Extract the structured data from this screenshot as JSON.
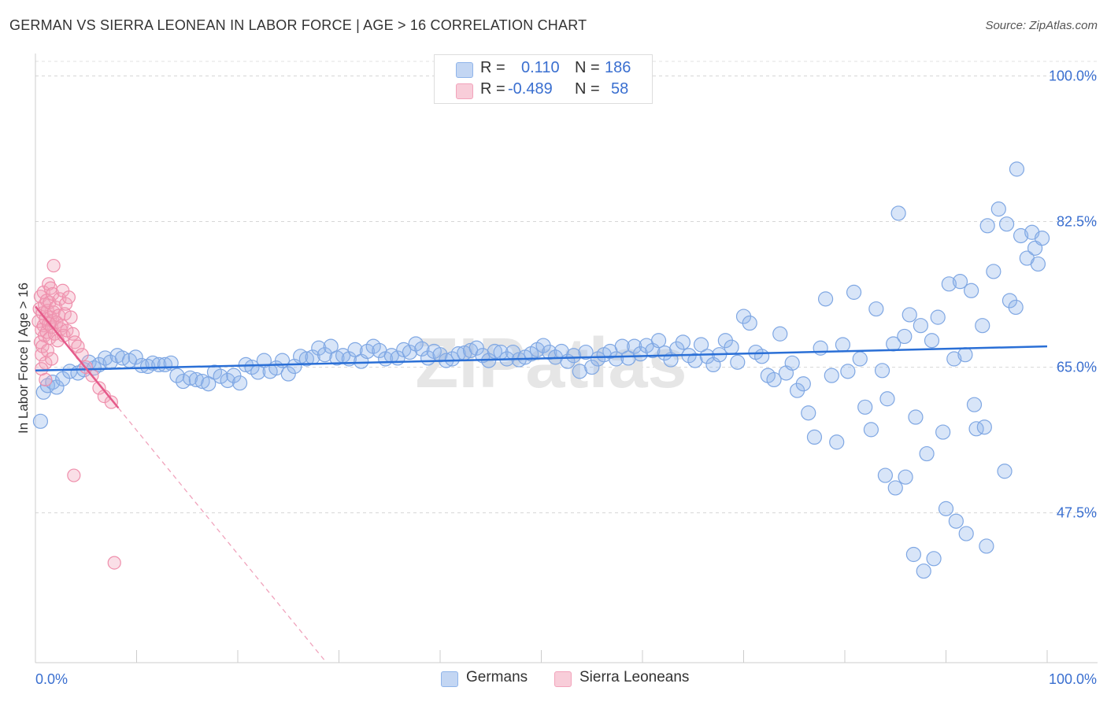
{
  "title": "GERMAN VS SIERRA LEONEAN IN LABOR FORCE | AGE > 16 CORRELATION CHART",
  "source": "Source: ZipAtlas.com",
  "watermark": "ZIPatlas",
  "legend": {
    "rows": [
      {
        "r_label": "R =",
        "r_value": "0.110",
        "n_label": "N =",
        "n_value": "186",
        "color": "#8fb4ea"
      },
      {
        "r_label": "R =",
        "r_value": "-0.489",
        "n_label": "N =",
        "n_value": "58",
        "color": "#f2a3bb"
      }
    ]
  },
  "bottom_legend": [
    {
      "label": "Germans",
      "color": "#8fb4ea"
    },
    {
      "label": "Sierra Leoneans",
      "color": "#f2a3bb"
    }
  ],
  "chart_data": {
    "type": "scatter",
    "title": "GERMAN VS SIERRA LEONEAN IN LABOR FORCE | AGE > 16 CORRELATION CHART",
    "xlabel": "",
    "ylabel": "In Labor Force | Age > 16",
    "xlim": [
      0,
      100
    ],
    "ylim": [
      29.5,
      102.5
    ],
    "x_tick_labels": [
      "0.0%",
      "100.0%"
    ],
    "y_ticks": [
      47.5,
      65.0,
      82.5,
      100.0
    ],
    "y_tick_labels": [
      "47.5%",
      "65.0%",
      "82.5%",
      "100.0%"
    ],
    "grid": true,
    "series": [
      {
        "name": "Germans",
        "color": "#8fb4ea",
        "line_color": "#2a6fd6",
        "trend": {
          "x0": 0,
          "y0": 64.6,
          "x1": 100,
          "y1": 67.5
        },
        "points": [
          [
            0.5,
            58.5
          ],
          [
            0.8,
            62
          ],
          [
            1.2,
            62.8
          ],
          [
            1.7,
            63.2
          ],
          [
            2.1,
            62.6
          ],
          [
            2.7,
            63.6
          ],
          [
            3.4,
            64.5
          ],
          [
            4.2,
            64.3
          ],
          [
            4.8,
            64.7
          ],
          [
            5.3,
            65.6
          ],
          [
            5.8,
            64.9
          ],
          [
            6.3,
            65.3
          ],
          [
            6.9,
            66.1
          ],
          [
            7.4,
            65.6
          ],
          [
            8.1,
            66.4
          ],
          [
            8.6,
            66.1
          ],
          [
            9.3,
            65.8
          ],
          [
            9.9,
            66.2
          ],
          [
            10.5,
            65.2
          ],
          [
            11.1,
            65.1
          ],
          [
            11.6,
            65.5
          ],
          [
            12.2,
            65.3
          ],
          [
            12.8,
            65.3
          ],
          [
            13.4,
            65.5
          ],
          [
            14.0,
            64.0
          ],
          [
            14.6,
            63.3
          ],
          [
            15.3,
            63.7
          ],
          [
            15.9,
            63.5
          ],
          [
            16.5,
            63.3
          ],
          [
            17.1,
            63.0
          ],
          [
            17.7,
            64.4
          ],
          [
            18.3,
            63.9
          ],
          [
            19.0,
            63.4
          ],
          [
            19.6,
            64.0
          ],
          [
            20.2,
            63.1
          ],
          [
            20.8,
            65.3
          ],
          [
            21.4,
            65.0
          ],
          [
            22.0,
            64.4
          ],
          [
            22.6,
            65.8
          ],
          [
            23.2,
            64.5
          ],
          [
            23.8,
            64.9
          ],
          [
            24.4,
            65.8
          ],
          [
            25.0,
            64.2
          ],
          [
            25.6,
            65.1
          ],
          [
            26.2,
            66.3
          ],
          [
            26.8,
            66.0
          ],
          [
            27.4,
            66.2
          ],
          [
            28.0,
            67.3
          ],
          [
            28.6,
            66.5
          ],
          [
            29.2,
            67.5
          ],
          [
            29.8,
            66.1
          ],
          [
            30.4,
            66.4
          ],
          [
            31.0,
            66.0
          ],
          [
            31.6,
            67.1
          ],
          [
            32.2,
            65.7
          ],
          [
            32.8,
            66.9
          ],
          [
            33.4,
            67.5
          ],
          [
            34.0,
            67.0
          ],
          [
            34.6,
            66.0
          ],
          [
            35.2,
            66.4
          ],
          [
            35.8,
            66.1
          ],
          [
            36.4,
            67.1
          ],
          [
            37.0,
            66.8
          ],
          [
            37.6,
            67.8
          ],
          [
            38.2,
            67.2
          ],
          [
            38.8,
            66.1
          ],
          [
            39.4,
            66.9
          ],
          [
            40.0,
            66.5
          ],
          [
            40.6,
            65.8
          ],
          [
            41.2,
            66.0
          ],
          [
            41.8,
            66.6
          ],
          [
            42.4,
            66.7
          ],
          [
            43.0,
            67.0
          ],
          [
            43.6,
            67.3
          ],
          [
            44.2,
            66.4
          ],
          [
            44.8,
            65.8
          ],
          [
            45.4,
            66.9
          ],
          [
            46.0,
            66.8
          ],
          [
            46.6,
            66.0
          ],
          [
            47.2,
            66.8
          ],
          [
            47.8,
            65.9
          ],
          [
            48.4,
            66.2
          ],
          [
            49.0,
            66.6
          ],
          [
            49.6,
            67.1
          ],
          [
            50.2,
            67.6
          ],
          [
            50.8,
            66.8
          ],
          [
            51.4,
            66.2
          ],
          [
            52.0,
            66.9
          ],
          [
            52.6,
            65.7
          ],
          [
            53.2,
            66.4
          ],
          [
            53.8,
            64.5
          ],
          [
            54.4,
            66.8
          ],
          [
            55.0,
            65.0
          ],
          [
            55.6,
            66.0
          ],
          [
            56.2,
            66.5
          ],
          [
            56.8,
            66.9
          ],
          [
            57.4,
            66.0
          ],
          [
            58.0,
            67.5
          ],
          [
            58.6,
            66.1
          ],
          [
            59.2,
            67.5
          ],
          [
            59.8,
            66.6
          ],
          [
            60.4,
            67.6
          ],
          [
            61.0,
            67.0
          ],
          [
            61.6,
            68.2
          ],
          [
            62.2,
            66.7
          ],
          [
            62.8,
            65.9
          ],
          [
            63.4,
            67.2
          ],
          [
            64.0,
            68.0
          ],
          [
            64.6,
            66.4
          ],
          [
            65.2,
            65.8
          ],
          [
            65.8,
            67.7
          ],
          [
            66.4,
            66.3
          ],
          [
            67.0,
            65.3
          ],
          [
            67.6,
            66.5
          ],
          [
            68.2,
            68.2
          ],
          [
            68.8,
            67.4
          ],
          [
            69.4,
            65.6
          ],
          [
            70.0,
            71.1
          ],
          [
            70.6,
            70.3
          ],
          [
            71.2,
            66.8
          ],
          [
            71.8,
            66.3
          ],
          [
            72.4,
            64.0
          ],
          [
            73.0,
            63.5
          ],
          [
            73.6,
            69.0
          ],
          [
            74.2,
            64.3
          ],
          [
            74.8,
            65.5
          ],
          [
            75.3,
            62.2
          ],
          [
            75.9,
            63.0
          ],
          [
            76.4,
            59.5
          ],
          [
            77.0,
            56.6
          ],
          [
            77.6,
            67.3
          ],
          [
            78.1,
            73.2
          ],
          [
            78.7,
            64.0
          ],
          [
            79.2,
            56.0
          ],
          [
            79.8,
            67.7
          ],
          [
            80.3,
            64.5
          ],
          [
            80.9,
            74.0
          ],
          [
            81.5,
            66.0
          ],
          [
            82.0,
            60.2
          ],
          [
            82.6,
            57.5
          ],
          [
            83.1,
            72.0
          ],
          [
            83.7,
            64.6
          ],
          [
            84.2,
            61.2
          ],
          [
            84.8,
            67.8
          ],
          [
            85.3,
            83.5
          ],
          [
            85.9,
            68.7
          ],
          [
            86.4,
            71.3
          ],
          [
            87.0,
            59.0
          ],
          [
            87.5,
            70.0
          ],
          [
            88.1,
            54.6
          ],
          [
            88.6,
            68.2
          ],
          [
            89.2,
            71.0
          ],
          [
            89.7,
            57.2
          ],
          [
            90.3,
            75.0
          ],
          [
            90.8,
            66.0
          ],
          [
            91.4,
            75.3
          ],
          [
            91.9,
            66.5
          ],
          [
            92.5,
            74.2
          ],
          [
            93.0,
            57.6
          ],
          [
            93.6,
            70.0
          ],
          [
            94.1,
            82.0
          ],
          [
            94.7,
            76.5
          ],
          [
            95.2,
            84.0
          ],
          [
            95.8,
            52.5
          ],
          [
            96.3,
            73.0
          ],
          [
            96.9,
            72.2
          ],
          [
            97.4,
            80.8
          ],
          [
            98.0,
            78.1
          ],
          [
            98.5,
            81.2
          ],
          [
            99.1,
            77.4
          ],
          [
            86.8,
            42.5
          ],
          [
            87.8,
            40.5
          ],
          [
            90.0,
            48.0
          ],
          [
            91.0,
            46.5
          ],
          [
            92.0,
            45.0
          ],
          [
            94.0,
            43.5
          ],
          [
            88.8,
            42.0
          ],
          [
            96.0,
            82.2
          ],
          [
            97.0,
            88.8
          ],
          [
            98.8,
            79.3
          ],
          [
            99.5,
            80.5
          ],
          [
            84.0,
            52.0
          ],
          [
            85.0,
            50.5
          ],
          [
            86.0,
            51.8
          ],
          [
            92.8,
            60.5
          ],
          [
            93.8,
            57.8
          ]
        ]
      },
      {
        "name": "Sierra Leoneans",
        "color": "#f2a3bb",
        "line_color": "#e55a8a",
        "trend": {
          "x0": 0,
          "y0": 72.3,
          "x1": 8.2,
          "y1": 60.1
        },
        "points": [
          [
            0.3,
            70.5
          ],
          [
            0.4,
            72.0
          ],
          [
            0.5,
            68.0
          ],
          [
            0.5,
            73.5
          ],
          [
            0.6,
            69.5
          ],
          [
            0.6,
            66.5
          ],
          [
            0.7,
            71.5
          ],
          [
            0.7,
            67.5
          ],
          [
            0.8,
            74.0
          ],
          [
            0.8,
            70.0
          ],
          [
            0.9,
            68.8
          ],
          [
            0.9,
            72.5
          ],
          [
            1.0,
            65.5
          ],
          [
            1.0,
            70.8
          ],
          [
            1.1,
            73.0
          ],
          [
            1.1,
            69.2
          ],
          [
            1.2,
            71.8
          ],
          [
            1.2,
            67.0
          ],
          [
            1.3,
            75.0
          ],
          [
            1.3,
            70.2
          ],
          [
            1.4,
            72.8
          ],
          [
            1.4,
            68.5
          ],
          [
            1.5,
            74.5
          ],
          [
            1.5,
            71.0
          ],
          [
            1.6,
            69.8
          ],
          [
            1.6,
            66.0
          ],
          [
            1.7,
            73.8
          ],
          [
            1.7,
            70.6
          ],
          [
            1.8,
            77.2
          ],
          [
            1.8,
            71.6
          ],
          [
            1.9,
            69.0
          ],
          [
            2.0,
            72.2
          ],
          [
            2.1,
            70.4
          ],
          [
            2.2,
            68.2
          ],
          [
            2.3,
            71.2
          ],
          [
            2.4,
            73.2
          ],
          [
            2.5,
            69.6
          ],
          [
            2.6,
            70.0
          ],
          [
            2.7,
            74.2
          ],
          [
            2.8,
            68.8
          ],
          [
            2.9,
            71.4
          ],
          [
            3.0,
            72.6
          ],
          [
            3.1,
            69.4
          ],
          [
            3.3,
            73.4
          ],
          [
            3.5,
            71.0
          ],
          [
            3.7,
            69.0
          ],
          [
            3.9,
            68.0
          ],
          [
            4.2,
            67.5
          ],
          [
            4.6,
            66.5
          ],
          [
            5.0,
            65.0
          ],
          [
            5.6,
            64.0
          ],
          [
            6.3,
            62.5
          ],
          [
            6.8,
            61.5
          ],
          [
            7.5,
            60.8
          ],
          [
            3.8,
            52.0
          ],
          [
            7.8,
            41.5
          ],
          [
            1.0,
            63.5
          ],
          [
            0.6,
            64.8
          ]
        ]
      }
    ]
  }
}
